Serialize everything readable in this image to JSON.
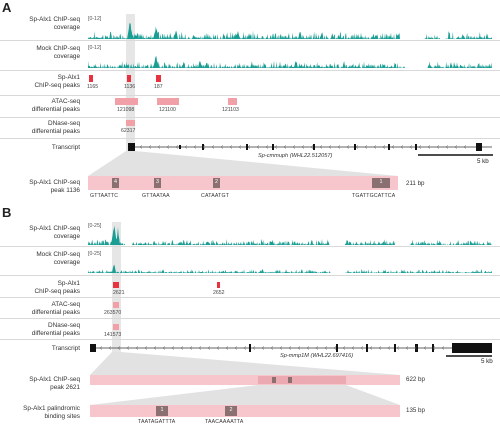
{
  "colors": {
    "teal": "#1a9e94",
    "red_peak": "#e8323f",
    "pink_peak": "#f0a0a6",
    "light_pink_box": "#f6c6cc",
    "site_box": "#8a7070",
    "highlight": "#e6e6e6",
    "gene_black": "#111111"
  },
  "panels": {
    "a": {
      "letter": "A",
      "tracks": {
        "chip_label": "Sp-Alx1 ChIP-seq\ncoverage",
        "chip_range": "[0-12]",
        "mock_label": "Mock ChIP-seq\ncoverage",
        "mock_range": "[0-12]",
        "peaks_label": "Sp-Alx1\nChIP-seq peaks",
        "atac_label": "ATAC-seq\ndifferential peaks",
        "dnase_label": "DNase-seq\ndifferential peaks",
        "transcript_label": "Transcript",
        "zoom_label": "Sp-Alx1 ChIP-seq\npeak 1136"
      },
      "chip_peak_ids": [
        "1165",
        "1136",
        "187"
      ],
      "atac_peak_ids": [
        "121098",
        "121100",
        "121103"
      ],
      "dnase_peak_ids": [
        "62317"
      ],
      "gene_name": "Sp-cmmuph (WHL22.512057)",
      "scale_label": "5 kb",
      "peak_length": "211 bp",
      "site_numbers": [
        "4",
        "3",
        "2",
        "1"
      ],
      "motifs": [
        "GTTAATTC",
        "GTTAATAA",
        "CATAATGT",
        "TGATTGCATTCA"
      ]
    },
    "b": {
      "letter": "B",
      "tracks": {
        "chip_label": "Sp-Alx1 ChIP-seq\ncoverage",
        "chip_range": "[0-25]",
        "mock_label": "Mock ChIP-seq\ncoverage",
        "mock_range": "[0-25]",
        "peaks_label": "Sp-Alx1\nChIP-seq peaks",
        "atac_label": "ATAC-seq\ndifferential peaks",
        "dnase_label": "DNase-seq\ndifferential peaks",
        "transcript_label": "Transcript",
        "zoom_label": "Sp-Alx1 ChIP-seq\npeak 2621",
        "palindromic_label": "Sp-Alx1 palindromic\nbinding sites"
      },
      "chip_peak_ids": [
        "2621",
        "2652"
      ],
      "atac_peak_ids": [
        "263570"
      ],
      "dnase_peak_ids": [
        "141573"
      ],
      "gene_name": "Sp-mmp1M (WHL22.697416)",
      "scale_label": "5 kb",
      "peak_length": "622 bp",
      "palindromic_length": "135 bp",
      "site_numbers": [
        "1",
        "2"
      ],
      "motifs": [
        "TAATAGATTTA",
        "TAACAAAATTA"
      ]
    }
  }
}
